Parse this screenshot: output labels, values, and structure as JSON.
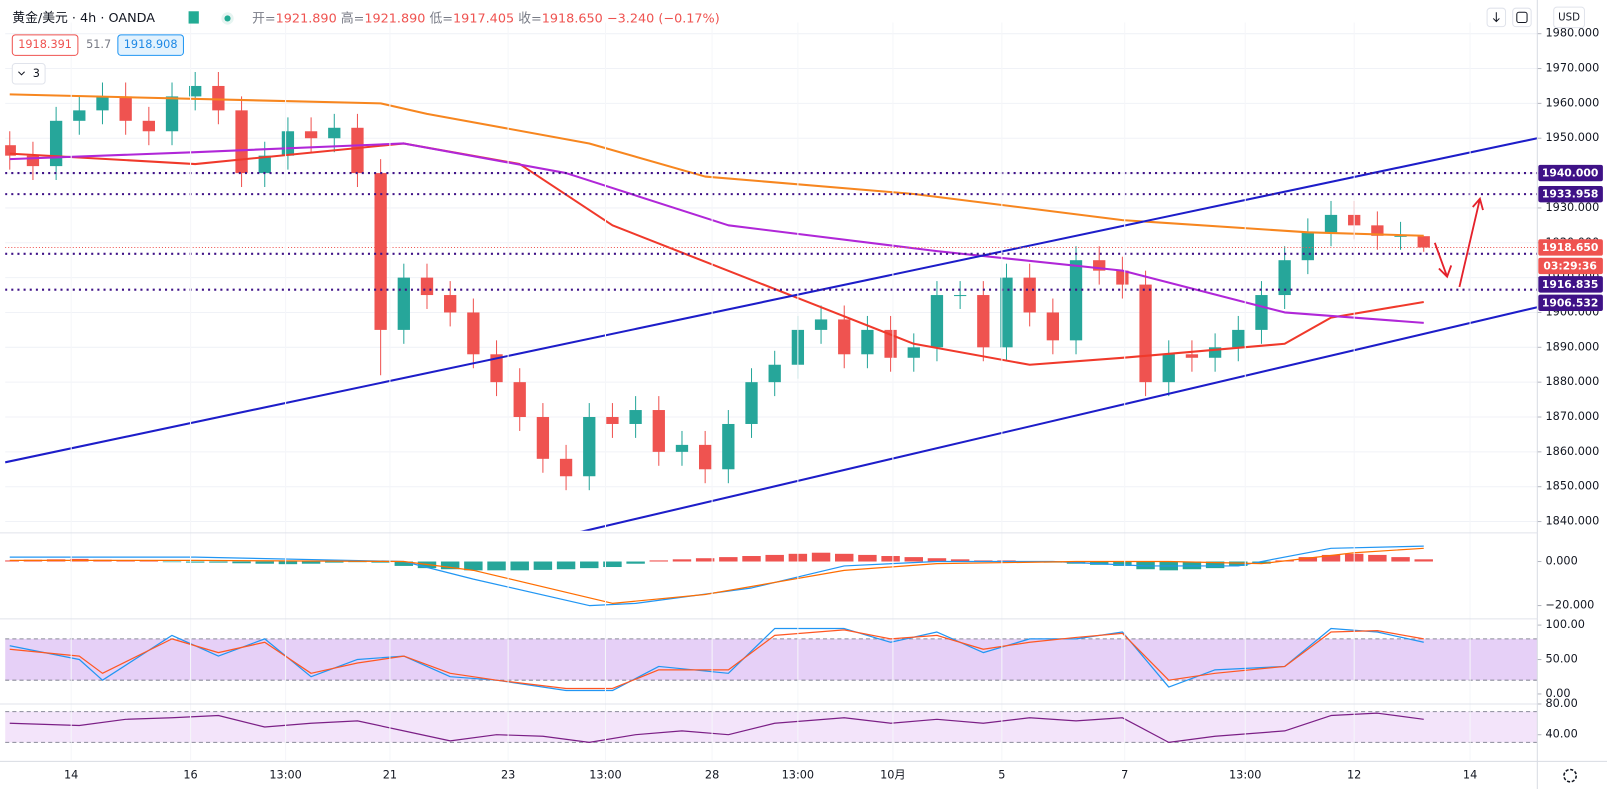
{
  "header": {
    "title": "黄金/美元 · 4h · OANDA",
    "ohlc": [
      {
        "label": "开=",
        "value": "1921.890"
      },
      {
        "label": "高=",
        "value": "1921.890"
      },
      {
        "label": "低=",
        "value": "1917.405"
      },
      {
        "label": "收=",
        "value": "1918.650"
      }
    ],
    "change": "−3.240 (−0.17%)",
    "badges": [
      "1918.391",
      "51.7",
      "1918.908"
    ],
    "collapsed_count": "3",
    "currency": "USD"
  },
  "chart_data": [
    {
      "type": "candlestick",
      "xlim": [
        -0.2,
        65.9
      ],
      "ylim": [
        1837.35,
        1983.2
      ],
      "yticks": [
        {
          "value": 1840,
          "label": "1840.000"
        },
        {
          "value": 1850,
          "label": "1850.000"
        },
        {
          "value": 1860,
          "label": "1860.000"
        },
        {
          "value": 1870,
          "label": "1870.000"
        },
        {
          "value": 1880,
          "label": "1880.000"
        },
        {
          "value": 1890,
          "label": "1890.000"
        },
        {
          "value": 1900,
          "label": "1900.000"
        },
        {
          "value": 1910,
          "label": "1910.000"
        },
        {
          "value": 1920,
          "label": "1920.000"
        },
        {
          "value": 1930,
          "label": "1930.000"
        },
        {
          "value": 1940,
          "label": "1940.000"
        },
        {
          "value": 1950,
          "label": "1950.000"
        },
        {
          "value": 1960,
          "label": "1960.000"
        },
        {
          "value": 1970,
          "label": "1970.000"
        },
        {
          "value": 1980,
          "label": "1980.000"
        }
      ],
      "up_color": "#26a69a",
      "down_color": "#ef5350",
      "open": [
        1948,
        1945,
        1942,
        1955,
        1958,
        1962,
        1955,
        1952,
        1962,
        1965,
        1958,
        1940,
        1945,
        1952,
        1950,
        1953,
        1940,
        1895,
        1910,
        1905,
        1900,
        1888,
        1880,
        1870,
        1858,
        1853,
        1870,
        1868,
        1872,
        1860,
        1862,
        1855,
        1868,
        1880,
        1885,
        1895,
        1898,
        1888,
        1895,
        1887,
        1890,
        1905,
        1905,
        1890,
        1910,
        1900,
        1892,
        1915,
        1912,
        1908,
        1880,
        1888,
        1887,
        1890,
        1895,
        1905,
        1915,
        1923,
        1928,
        1925,
        1922,
        1921.89
      ],
      "high": [
        1952,
        1949,
        1959,
        1962,
        1966,
        1966,
        1959,
        1966,
        1969,
        1969,
        1962,
        1949,
        1956,
        1956,
        1957,
        1957,
        1944,
        1914,
        1914,
        1909,
        1904,
        1892,
        1884,
        1874,
        1862,
        1874,
        1874,
        1876,
        1876,
        1866,
        1866,
        1872,
        1884,
        1889,
        1899,
        1902,
        1902,
        1899,
        1899,
        1894,
        1909,
        1909,
        1909,
        1914,
        1914,
        1904,
        1919,
        1919,
        1916,
        1912,
        1892,
        1892,
        1894,
        1899,
        1909,
        1919,
        1927,
        1932,
        1932,
        1929,
        1926,
        1921.89
      ],
      "low": [
        1941,
        1938,
        1938,
        1951,
        1954,
        1951,
        1948,
        1948,
        1958,
        1954,
        1936,
        1936,
        1941,
        1946,
        1946,
        1936,
        1882,
        1891,
        1901,
        1896,
        1884,
        1876,
        1866,
        1854,
        1849,
        1849,
        1864,
        1864,
        1856,
        1856,
        1851,
        1851,
        1864,
        1876,
        1881,
        1891,
        1884,
        1884,
        1883,
        1883,
        1886,
        1901,
        1886,
        1886,
        1896,
        1888,
        1888,
        1908,
        1904,
        1876,
        1876,
        1883,
        1883,
        1886,
        1891,
        1901,
        1911,
        1919,
        1921,
        1918,
        1918,
        1917.405
      ],
      "close": [
        1945,
        1942,
        1955,
        1958,
        1962,
        1955,
        1952,
        1962,
        1965,
        1958,
        1940,
        1945,
        1952,
        1950,
        1953,
        1940,
        1895,
        1910,
        1905,
        1900,
        1888,
        1880,
        1870,
        1858,
        1853,
        1870,
        1868,
        1872,
        1860,
        1862,
        1855,
        1868,
        1880,
        1885,
        1895,
        1898,
        1888,
        1895,
        1887,
        1890,
        1905,
        1905,
        1890,
        1910,
        1900,
        1892,
        1915,
        1912,
        1908,
        1880,
        1888,
        1887,
        1890,
        1895,
        1905,
        1915,
        1923,
        1928,
        1925,
        1922,
        1922,
        1918.65
      ],
      "series": [
        {
          "color": "#f7861f",
          "x": [
            0,
            16,
            18,
            25,
            30,
            39,
            48,
            56,
            61
          ],
          "values": [
            1962.6,
            1960,
            1957,
            1948.5,
            1939,
            1934,
            1926.5,
            1923,
            1922
          ]
        },
        {
          "color": "#f0392b",
          "x": [
            0,
            8,
            17,
            22,
            26,
            35,
            39,
            44,
            48,
            55,
            57,
            61
          ],
          "values": [
            1945.6,
            1942.6,
            1948.5,
            1942.6,
            1925,
            1901.5,
            1891,
            1885,
            1887,
            1891,
            1898.5,
            1903
          ]
        },
        {
          "color": "#b027d8",
          "x": [
            0,
            8,
            17,
            24,
            31,
            40,
            48,
            55,
            61
          ],
          "values": [
            1944,
            1946,
            1948.5,
            1940,
            1925,
            1917.6,
            1912,
            1900,
            1897
          ]
        }
      ],
      "trendlines": [
        {
          "color": "#1d1dc9",
          "x": [
            -0.2,
            65.9
          ],
          "values": [
            1857,
            1950
          ]
        },
        {
          "color": "#1d1dc9",
          "x": [
            24.6,
            65.9
          ],
          "values": [
            1837,
            1901.5
          ]
        }
      ],
      "levels": [
        {
          "value": 1940,
          "label": "1940.000"
        },
        {
          "value": 1933.958,
          "label": "1933.958"
        },
        {
          "value": 1916.835,
          "label": "1916.835"
        },
        {
          "value": 1906.532,
          "label": "1906.532"
        }
      ],
      "level_color": "#3f1287",
      "last": {
        "value": 1918.65,
        "label": "1918.650",
        "countdown": "03:29:36",
        "color": "#ef5350"
      }
    },
    {
      "type": "macd",
      "xlim": [
        -0.2,
        65.9
      ],
      "ylim": [
        -25.6,
        12.1
      ],
      "yticks": [
        {
          "value": 0,
          "label": "0.000"
        },
        {
          "value": -20,
          "label": "−20.000"
        }
      ],
      "histogram": [
        0.5,
        0.8,
        1,
        1.2,
        0.8,
        0.5,
        0.3,
        -0.3,
        -0.5,
        -0.5,
        -0.8,
        -1,
        -1.2,
        -1,
        -0.5,
        -0.3,
        -0.5,
        -2,
        -3,
        -3.5,
        -4,
        -4,
        -4,
        -3.8,
        -3.5,
        -3,
        -2.5,
        -1,
        0.5,
        1,
        1.5,
        2,
        2.5,
        3,
        3.5,
        4,
        3.5,
        3,
        2.5,
        2,
        1.5,
        1,
        0.5,
        0.5,
        0,
        -0.5,
        -1,
        -1.5,
        -2,
        -3.5,
        -4,
        -3.5,
        -3,
        -2,
        -1,
        0.5,
        2,
        3,
        3.5,
        3,
        2,
        1
      ],
      "hist_colors": [
        "#ef5350",
        "#26a69a"
      ],
      "series": [
        {
          "color": "#2196f3",
          "x": [
            0,
            8,
            17,
            20,
            25,
            27,
            32,
            36,
            40,
            45,
            49,
            53,
            57,
            61
          ],
          "values": [
            2,
            2,
            0,
            -8,
            -20,
            -19,
            -12,
            -2,
            0,
            0,
            -2,
            -2,
            6,
            7
          ]
        },
        {
          "color": "#ff6d00",
          "x": [
            0,
            8,
            17,
            20,
            26,
            30,
            36,
            40,
            46,
            50,
            54,
            58,
            61
          ],
          "values": [
            0.5,
            0.5,
            0,
            -4,
            -19,
            -15,
            -4,
            -1,
            0,
            0,
            -1,
            4,
            6
          ]
        }
      ]
    },
    {
      "type": "stochastic",
      "xlim": [
        -0.2,
        65.9
      ],
      "ylim": [
        -16,
        106
      ],
      "yticks": [
        {
          "value": 100,
          "label": "100.00"
        },
        {
          "value": 50,
          "label": "50.00"
        },
        {
          "value": 0,
          "label": "0.00"
        }
      ],
      "bands": [
        20,
        80
      ],
      "band_color": "#e6d0f7",
      "series": [
        {
          "color": "#2196f3",
          "x": [
            0,
            3,
            4,
            7,
            9,
            11,
            13,
            15,
            17,
            19,
            21,
            24,
            26,
            28,
            31,
            33,
            36,
            38,
            40,
            42,
            44,
            46,
            48,
            50,
            52,
            55,
            57,
            59,
            61
          ],
          "values": [
            70,
            50,
            20,
            85,
            55,
            80,
            25,
            50,
            55,
            25,
            20,
            5,
            5,
            40,
            30,
            95,
            95,
            75,
            90,
            60,
            80,
            80,
            90,
            10,
            35,
            40,
            95,
            90,
            75
          ]
        },
        {
          "color": "#ff5722",
          "x": [
            0,
            3,
            4,
            7,
            9,
            11,
            13,
            15,
            17,
            19,
            21,
            24,
            26,
            28,
            31,
            33,
            36,
            38,
            40,
            42,
            44,
            46,
            48,
            50,
            52,
            55,
            57,
            59,
            61
          ],
          "values": [
            65,
            55,
            30,
            80,
            60,
            75,
            30,
            45,
            55,
            30,
            20,
            8,
            8,
            35,
            35,
            85,
            93,
            80,
            85,
            65,
            75,
            82,
            88,
            20,
            30,
            40,
            90,
            92,
            80
          ]
        }
      ]
    },
    {
      "type": "rsi",
      "xlim": [
        -0.2,
        65.9
      ],
      "ylim": [
        6.7,
        78.7
      ],
      "yticks": [
        {
          "value": 80,
          "label": "80.00"
        },
        {
          "value": 40,
          "label": "40.00"
        }
      ],
      "bands": [
        30,
        70
      ],
      "band_color": "#f3e4fa",
      "series": [
        {
          "color": "#7b1f86",
          "x": [
            0,
            3,
            5,
            7,
            9,
            11,
            13,
            15,
            17,
            19,
            21,
            23,
            25,
            27,
            29,
            31,
            33,
            36,
            38,
            40,
            42,
            44,
            46,
            48,
            50,
            52,
            55,
            57,
            59,
            61
          ],
          "values": [
            55,
            52,
            60,
            62,
            65,
            50,
            55,
            58,
            45,
            32,
            40,
            38,
            30,
            40,
            45,
            40,
            55,
            62,
            55,
            60,
            55,
            62,
            58,
            62,
            30,
            38,
            45,
            65,
            68,
            60
          ]
        }
      ],
      "xticks": [
        {
          "value": 2.65,
          "label": "14"
        },
        {
          "value": 7.8,
          "label": "16"
        },
        {
          "value": 11.9,
          "label": "13:00"
        },
        {
          "value": 16.4,
          "label": "21"
        },
        {
          "value": 21.5,
          "label": "23"
        },
        {
          "value": 25.7,
          "label": "13:00"
        },
        {
          "value": 30.3,
          "label": "28"
        },
        {
          "value": 34,
          "label": "13:00"
        },
        {
          "value": 38.1,
          "label": "10月"
        },
        {
          "value": 42.8,
          "label": "5"
        },
        {
          "value": 48.1,
          "label": "7"
        },
        {
          "value": 53.3,
          "label": "13:00"
        },
        {
          "value": 58,
          "label": "12"
        },
        {
          "value": 63,
          "label": "14"
        }
      ]
    }
  ]
}
